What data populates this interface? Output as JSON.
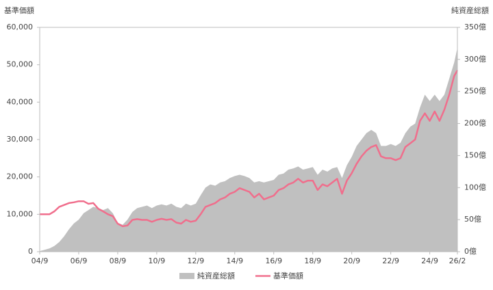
{
  "chart_data": {
    "type": "area-line",
    "y_label": "基準価額",
    "y2_label": "純資産総額",
    "x": [
      "04/9",
      "04/12",
      "05/3",
      "05/6",
      "05/9",
      "05/12",
      "06/3",
      "06/6",
      "06/9",
      "06/12",
      "07/3",
      "07/6",
      "07/9",
      "07/12",
      "08/3",
      "08/6",
      "08/9",
      "08/12",
      "09/3",
      "09/6",
      "09/9",
      "09/12",
      "10/3",
      "10/6",
      "10/9",
      "10/12",
      "11/3",
      "11/6",
      "11/9",
      "11/12",
      "12/3",
      "12/6",
      "12/9",
      "12/12",
      "13/3",
      "13/6",
      "13/9",
      "13/12",
      "14/3",
      "14/6",
      "14/9",
      "14/12",
      "15/3",
      "15/6",
      "15/9",
      "15/12",
      "16/3",
      "16/6",
      "16/9",
      "16/12",
      "17/3",
      "17/6",
      "17/9",
      "17/12",
      "18/3",
      "18/6",
      "18/9",
      "18/12",
      "19/3",
      "19/6",
      "19/9",
      "19/12",
      "20/3",
      "20/6",
      "20/9",
      "20/12",
      "21/3",
      "21/6",
      "21/9",
      "21/12",
      "22/3",
      "22/6",
      "22/9",
      "22/12",
      "23/3",
      "23/6",
      "23/9",
      "23/12",
      "24/3",
      "24/6",
      "24/9",
      "24/12",
      "25/3",
      "25/6",
      "25/9",
      "25/12",
      "26/2"
    ],
    "xlim": [
      "04/9",
      "26/2"
    ],
    "xticks": [
      "04/9",
      "06/9",
      "08/9",
      "10/9",
      "12/9",
      "14/9",
      "16/9",
      "18/9",
      "20/9",
      "22/9",
      "24/9",
      "26/2"
    ],
    "series": [
      {
        "name": "純資産総額",
        "kind": "area",
        "axis": "y2",
        "color": "#c0c0c0",
        "values": [
          1,
          3,
          5,
          9,
          15,
          24,
          35,
          44,
          50,
          60,
          65,
          70,
          68,
          65,
          68,
          60,
          45,
          42,
          50,
          62,
          68,
          70,
          72,
          68,
          72,
          74,
          72,
          75,
          70,
          68,
          75,
          72,
          75,
          88,
          100,
          105,
          103,
          108,
          110,
          115,
          118,
          120,
          118,
          115,
          108,
          110,
          108,
          110,
          112,
          120,
          122,
          128,
          130,
          133,
          128,
          130,
          132,
          120,
          128,
          125,
          130,
          132,
          115,
          135,
          148,
          165,
          175,
          185,
          190,
          185,
          165,
          165,
          168,
          165,
          170,
          185,
          195,
          200,
          225,
          245,
          235,
          245,
          235,
          245,
          270,
          295,
          318
        ]
      },
      {
        "name": "基準価額",
        "kind": "line",
        "axis": "y",
        "color": "#f06e8c",
        "values": [
          10000,
          10000,
          10000,
          10800,
          12000,
          12500,
          13000,
          13200,
          13500,
          13500,
          12800,
          13000,
          11500,
          10800,
          10000,
          9500,
          7500,
          6800,
          7000,
          8500,
          8700,
          8500,
          8500,
          8000,
          8500,
          8800,
          8500,
          8700,
          7800,
          7500,
          8500,
          8000,
          8300,
          10000,
          12000,
          12500,
          13000,
          14000,
          14500,
          15500,
          16000,
          17000,
          16500,
          16000,
          14500,
          15500,
          14000,
          14500,
          15000,
          16500,
          17000,
          18000,
          18500,
          19500,
          18500,
          19000,
          19000,
          16500,
          18000,
          17500,
          18500,
          19500,
          15500,
          19000,
          21000,
          23500,
          25500,
          27000,
          28000,
          28500,
          25500,
          25000,
          25000,
          24500,
          25000,
          28000,
          29000,
          30000,
          35000,
          37000,
          35000,
          37500,
          35000,
          38000,
          42000,
          47000,
          48500
        ]
      }
    ],
    "ylim": [
      0,
      60000
    ],
    "yticks": [
      0,
      {
        "value": 10000,
        "label": "10,000"
      },
      {
        "value": 20000,
        "label": "20,000"
      },
      {
        "value": 30000,
        "label": "30,000"
      },
      {
        "value": 40000,
        "label": "40,000"
      },
      {
        "value": 50000,
        "label": "50,000"
      },
      {
        "value": 60000,
        "label": "60,000"
      }
    ],
    "y2lim": [
      0,
      350
    ],
    "y2ticks": [
      {
        "value": 0,
        "label": "0億"
      },
      {
        "value": 50,
        "label": "50億"
      },
      {
        "value": 100,
        "label": "100億"
      },
      {
        "value": 150,
        "label": "150億"
      },
      {
        "value": 200,
        "label": "200億"
      },
      {
        "value": 250,
        "label": "250億"
      },
      {
        "value": 300,
        "label": "300億"
      },
      {
        "value": 350,
        "label": "350億"
      }
    ],
    "grid": false
  }
}
